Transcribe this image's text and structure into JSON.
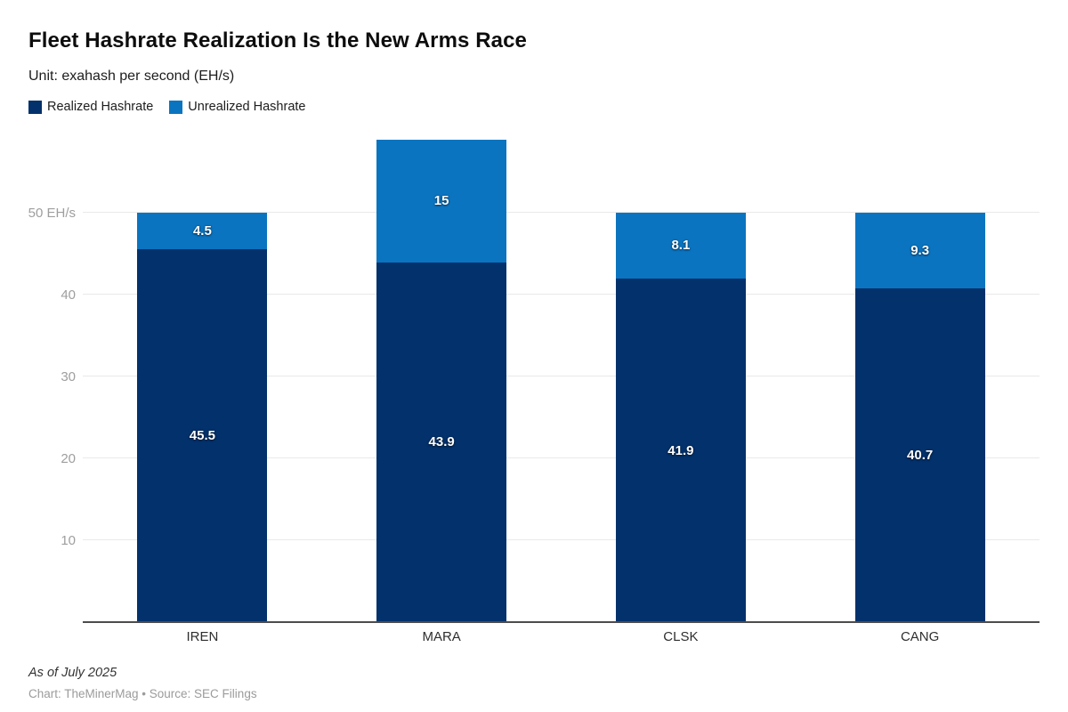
{
  "header": {
    "title": "Fleet Hashrate Realization Is the New Arms Race",
    "subtitle": "Unit: exahash per second (EH/s)"
  },
  "legend": {
    "items": [
      {
        "label": "Realized Hashrate",
        "color": "#03316b"
      },
      {
        "label": "Unrealized Hashrate",
        "color": "#0b74c0"
      }
    ]
  },
  "chart_data": {
    "type": "bar",
    "stacked": true,
    "categories": [
      "IREN",
      "MARA",
      "CLSK",
      "CANG"
    ],
    "series": [
      {
        "name": "Realized Hashrate",
        "color": "#03316b",
        "values": [
          45.5,
          43.9,
          41.9,
          40.7
        ],
        "labels": [
          "45.5",
          "43.9",
          "41.9",
          "40.7"
        ]
      },
      {
        "name": "Unrealized Hashrate",
        "color": "#0b74c0",
        "values": [
          4.5,
          15,
          8.1,
          9.3
        ],
        "labels": [
          "4.5",
          "15",
          "8.1",
          "9.3"
        ]
      }
    ],
    "totals": [
      50,
      58.9,
      50,
      50
    ],
    "ylabel_unit": "EH/s",
    "yticks": [
      {
        "value": 10,
        "label": "10"
      },
      {
        "value": 20,
        "label": "20"
      },
      {
        "value": 30,
        "label": "30"
      },
      {
        "value": 40,
        "label": "40"
      },
      {
        "value": 50,
        "label": "50 EH/s"
      }
    ],
    "ylim": [
      0,
      60.8
    ],
    "grid": true,
    "legend_position": "top-left"
  },
  "footer": {
    "note": "As of July 2025",
    "credit": "Chart: TheMinerMag • Source: SEC Filings"
  }
}
